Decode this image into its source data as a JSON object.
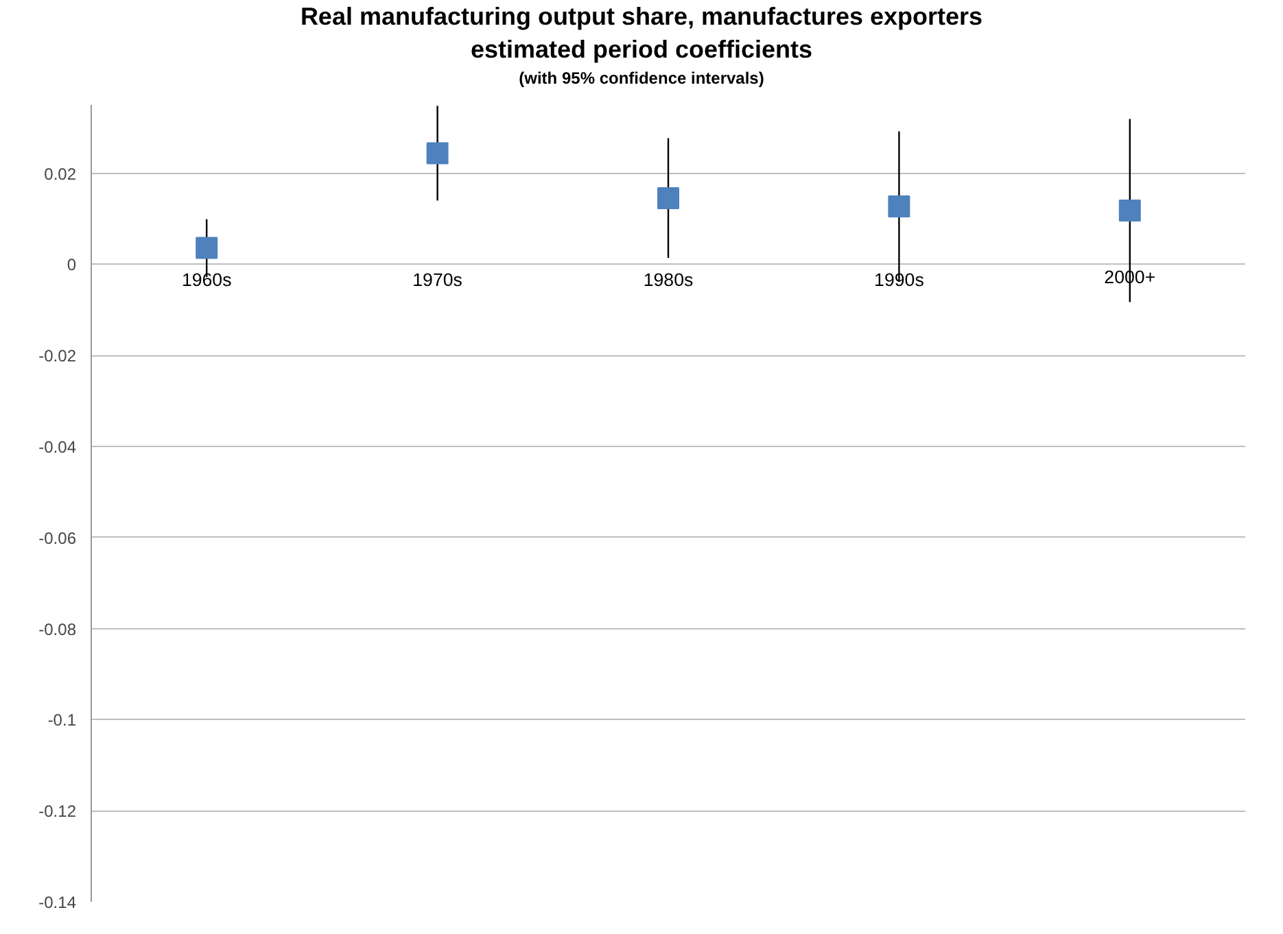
{
  "chart_data": {
    "type": "scatter",
    "title": "Real manufacturing output share, manufactures exporters\nestimated period coefficients",
    "subtitle": "(with 95% confidence intervals)",
    "categories": [
      "1960s",
      "1970s",
      "1980s",
      "1990s",
      "2000+"
    ],
    "values": [
      0.0036,
      0.0244,
      0.0145,
      0.0127,
      0.0118
    ],
    "errors": [
      [
        -0.0028,
        0.0099
      ],
      [
        0.014,
        0.0348
      ],
      [
        0.0014,
        0.0277
      ],
      [
        -0.0038,
        0.0292
      ],
      [
        -0.0083,
        0.0319
      ]
    ],
    "color": "#4f81bd",
    "marker": "square",
    "grid": "y",
    "ylim": [
      -0.14,
      0.035
    ],
    "yticks": [
      {
        "value": -0.14,
        "label": "-0.14"
      },
      {
        "value": -0.12,
        "label": "-0.12"
      },
      {
        "value": -0.1,
        "label": "-0.1"
      },
      {
        "value": -0.08,
        "label": "-0.08"
      },
      {
        "value": -0.06,
        "label": "-0.06"
      },
      {
        "value": -0.04,
        "label": "-0.04"
      },
      {
        "value": -0.02,
        "label": "-0.02"
      },
      {
        "value": 0,
        "label": "0"
      },
      {
        "value": 0.02,
        "label": "0.02"
      }
    ]
  }
}
